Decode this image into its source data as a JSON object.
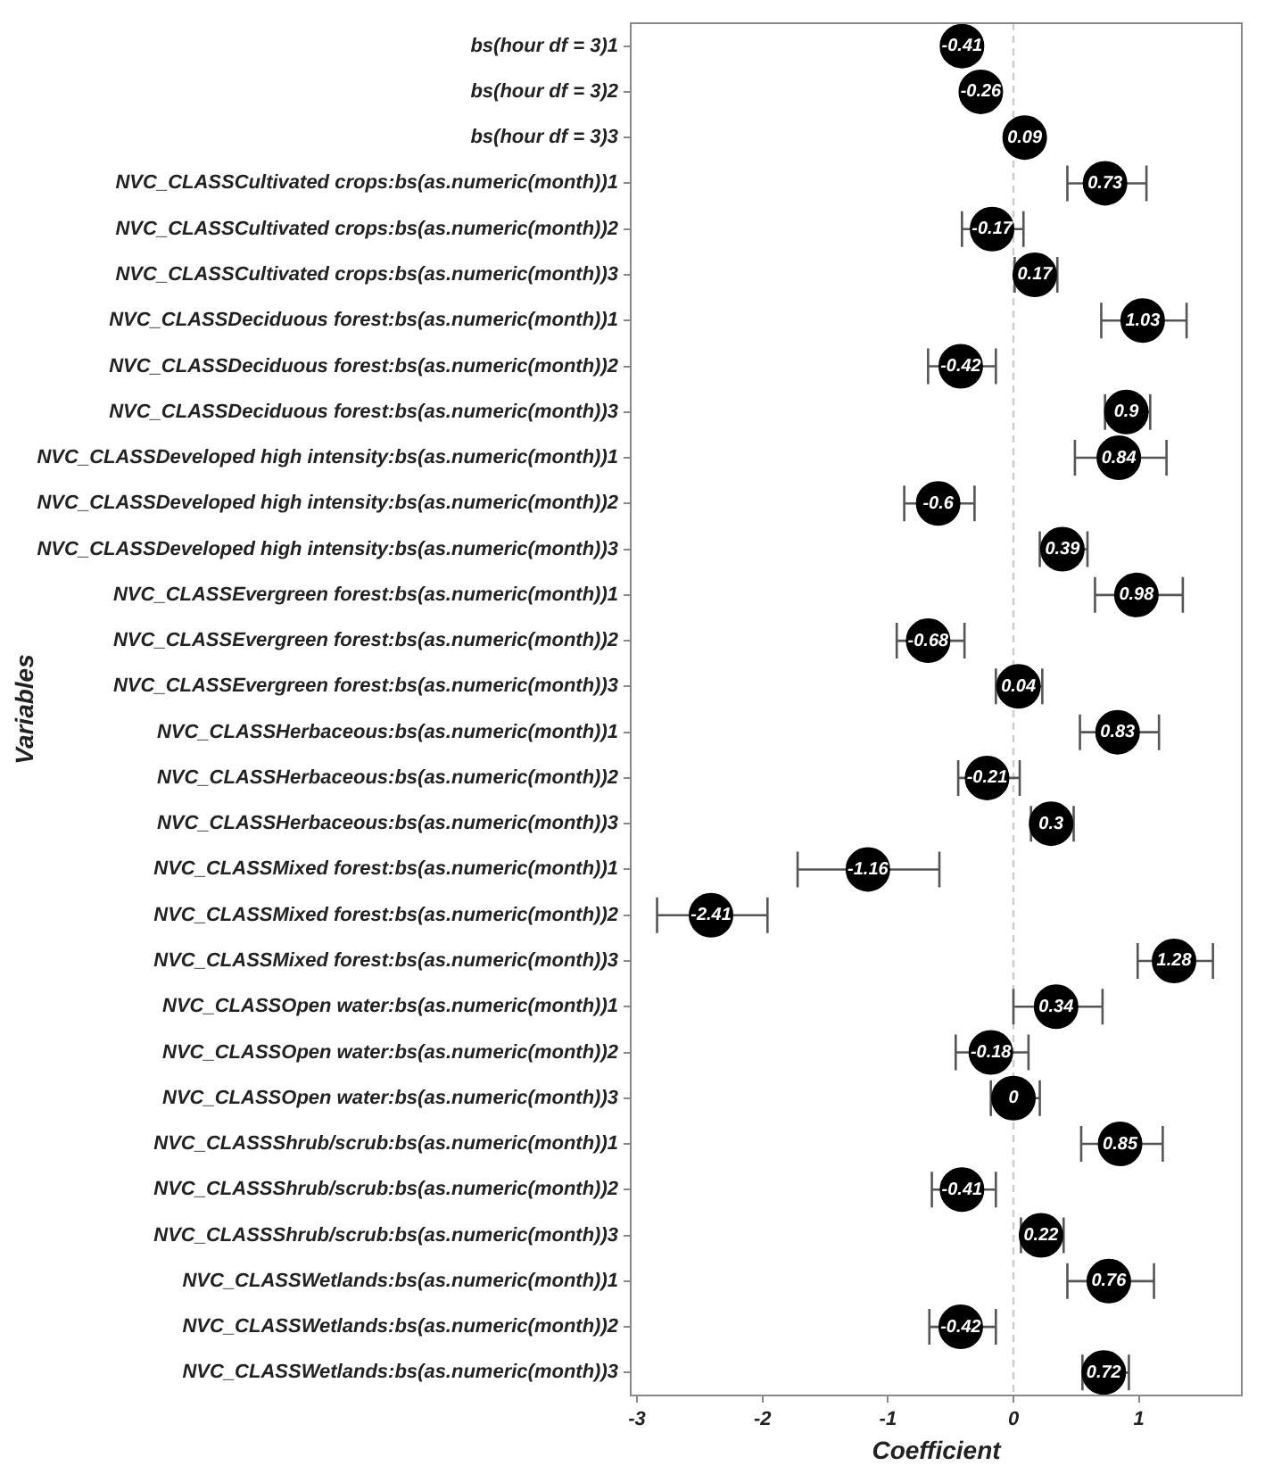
{
  "chart_data": {
    "type": "scatter",
    "orientation": "horizontal",
    "xlabel": "Coefficient",
    "ylabel": "Variables",
    "categories": [
      "bs(hour df = 3)1",
      "bs(hour df = 3)2",
      "bs(hour df = 3)3",
      "NVC_CLASSCultivated crops:bs(as.numeric(month))1",
      "NVC_CLASSCultivated crops:bs(as.numeric(month))2",
      "NVC_CLASSCultivated crops:bs(as.numeric(month))3",
      "NVC_CLASSDeciduous forest:bs(as.numeric(month))1",
      "NVC_CLASSDeciduous forest:bs(as.numeric(month))2",
      "NVC_CLASSDeciduous forest:bs(as.numeric(month))3",
      "NVC_CLASSDeveloped high intensity:bs(as.numeric(month))1",
      "NVC_CLASSDeveloped high intensity:bs(as.numeric(month))2",
      "NVC_CLASSDeveloped high intensity:bs(as.numeric(month))3",
      "NVC_CLASSEvergreen forest:bs(as.numeric(month))1",
      "NVC_CLASSEvergreen forest:bs(as.numeric(month))2",
      "NVC_CLASSEvergreen forest:bs(as.numeric(month))3",
      "NVC_CLASSHerbaceous:bs(as.numeric(month))1",
      "NVC_CLASSHerbaceous:bs(as.numeric(month))2",
      "NVC_CLASSHerbaceous:bs(as.numeric(month))3",
      "NVC_CLASSMixed forest:bs(as.numeric(month))1",
      "NVC_CLASSMixed forest:bs(as.numeric(month))2",
      "NVC_CLASSMixed forest:bs(as.numeric(month))3",
      "NVC_CLASSOpen water:bs(as.numeric(month))1",
      "NVC_CLASSOpen water:bs(as.numeric(month))2",
      "NVC_CLASSOpen water:bs(as.numeric(month))3",
      "NVC_CLASSShrub/scrub:bs(as.numeric(month))1",
      "NVC_CLASSShrub/scrub:bs(as.numeric(month))2",
      "NVC_CLASSShrub/scrub:bs(as.numeric(month))3",
      "NVC_CLASSWetlands:bs(as.numeric(month))1",
      "NVC_CLASSWetlands:bs(as.numeric(month))2",
      "NVC_CLASSWetlands:bs(as.numeric(month))3"
    ],
    "values": [
      -0.41,
      -0.26,
      0.09,
      0.73,
      -0.17,
      0.17,
      1.03,
      -0.42,
      0.9,
      0.84,
      -0.6,
      0.39,
      0.98,
      -0.68,
      0.04,
      0.83,
      -0.21,
      0.3,
      -1.16,
      -2.41,
      1.28,
      0.34,
      -0.18,
      0,
      0.85,
      -0.41,
      0.22,
      0.76,
      -0.42,
      0.72
    ],
    "errors": [
      [
        -0.46,
        -0.36
      ],
      [
        -0.31,
        -0.21
      ],
      [
        0.05,
        0.13
      ],
      [
        0.43,
        1.06
      ],
      [
        -0.41,
        0.08
      ],
      [
        0.01,
        0.35
      ],
      [
        0.7,
        1.38
      ],
      [
        -0.68,
        -0.14
      ],
      [
        0.73,
        1.09
      ],
      [
        0.49,
        1.22
      ],
      [
        -0.87,
        -0.31
      ],
      [
        0.21,
        0.59
      ],
      [
        0.65,
        1.35
      ],
      [
        -0.93,
        -0.39
      ],
      [
        -0.14,
        0.23
      ],
      [
        0.53,
        1.16
      ],
      [
        -0.44,
        0.05
      ],
      [
        0.14,
        0.48
      ],
      [
        -1.72,
        -0.59
      ],
      [
        -2.84,
        -1.96
      ],
      [
        0.99,
        1.59
      ],
      [
        0.0,
        0.71
      ],
      [
        -0.46,
        0.12
      ],
      [
        -0.18,
        0.21
      ],
      [
        0.54,
        1.19
      ],
      [
        -0.65,
        -0.14
      ],
      [
        0.06,
        0.4
      ],
      [
        0.43,
        1.12
      ],
      [
        -0.67,
        -0.14
      ],
      [
        0.55,
        0.92
      ]
    ],
    "color": "#000000",
    "marker": "circle",
    "data_labels": true,
    "xlim": [
      -3.05,
      1.82
    ],
    "xticks": [
      -3,
      -2,
      -1,
      0,
      1
    ],
    "ref_lines": [
      {
        "axis": "x",
        "value": 0,
        "color": "#cccccc",
        "line_style": "dashed"
      }
    ],
    "grid": false,
    "legend": false
  }
}
